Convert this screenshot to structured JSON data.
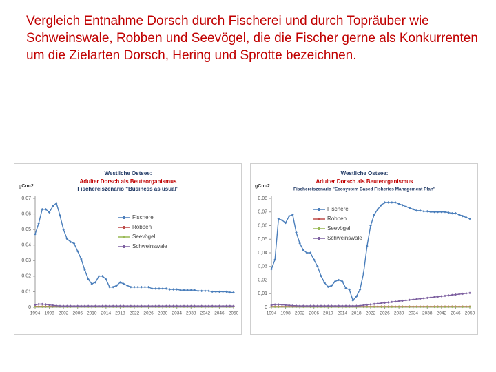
{
  "title": "Vergleich Entnahme Dorsch durch Fischerei und durch Topräuber wie Schweinswale, Robben und Seevögel, die die Fischer gerne als Konkurrenten um die Zielarten Dorsch, Hering und Sprotte bezeichnen.",
  "chart_data": [
    {
      "type": "line",
      "title": "Westliche Ostsee:",
      "subtitle": "Adulter Dorsch als Beuteorganismus",
      "scenario": "Fischereiszenario \"Business as usual\"",
      "ylabel": "gCm-2",
      "x": [
        1994,
        1995,
        1996,
        1997,
        1998,
        1999,
        2000,
        2001,
        2002,
        2003,
        2004,
        2005,
        2006,
        2007,
        2008,
        2009,
        2010,
        2011,
        2012,
        2013,
        2014,
        2015,
        2016,
        2017,
        2018,
        2019,
        2020,
        2021,
        2022,
        2023,
        2024,
        2025,
        2026,
        2027,
        2028,
        2029,
        2030,
        2031,
        2032,
        2033,
        2034,
        2035,
        2036,
        2037,
        2038,
        2039,
        2040,
        2041,
        2042,
        2043,
        2044,
        2045,
        2046,
        2047,
        2048,
        2049,
        2050
      ],
      "xlim": [
        1994,
        2050
      ],
      "xticks": [
        1994,
        1998,
        2002,
        2006,
        2010,
        2014,
        2018,
        2022,
        2026,
        2030,
        2034,
        2038,
        2042,
        2046,
        2050
      ],
      "ylim": [
        0,
        0.07
      ],
      "yticks": [
        0,
        {
          "value": 0.01,
          "label": "0,01"
        },
        {
          "value": 0.02,
          "label": "0,02"
        },
        {
          "value": 0.03,
          "label": "0,03"
        },
        {
          "value": 0.04,
          "label": "0,04"
        },
        {
          "value": 0.05,
          "label": "0,05"
        },
        {
          "value": 0.06,
          "label": "0,06"
        },
        {
          "value": 0.07,
          "label": "0,07"
        }
      ],
      "grid": false,
      "legend": "center",
      "series": [
        {
          "name": "Fischerei",
          "color": "#4a7ebb",
          "values": [
            0.047,
            0.054,
            0.063,
            0.063,
            0.061,
            0.065,
            0.067,
            0.059,
            0.05,
            0.044,
            0.042,
            0.041,
            0.036,
            0.031,
            0.024,
            0.018,
            0.015,
            0.016,
            0.02,
            0.02,
            0.018,
            0.013,
            0.013,
            0.014,
            0.016,
            0.015,
            0.014,
            0.013,
            0.013,
            0.013,
            0.013,
            0.013,
            0.013,
            0.012,
            0.012,
            0.012,
            0.012,
            0.012,
            0.0115,
            0.0115,
            0.0115,
            0.011,
            0.011,
            0.011,
            0.011,
            0.011,
            0.0105,
            0.0105,
            0.0105,
            0.0105,
            0.01,
            0.01,
            0.01,
            0.01,
            0.01,
            0.0095,
            0.0095
          ]
        },
        {
          "name": "Robben",
          "color": "#be4b48",
          "values": [
            0.0005,
            0.0005,
            0.0005,
            0.0005,
            0.0005,
            0.0005,
            0.0005,
            0.0005,
            0.0005,
            0.0005,
            0.0005,
            0.0005,
            0.0005,
            0.0005,
            0.0005,
            0.0005,
            0.0005,
            0.0005,
            0.0005,
            0.0005,
            0.0005,
            0.0005,
            0.0005,
            0.0005,
            0.0005,
            0.0005,
            0.0005,
            0.0005,
            0.0005,
            0.0005,
            0.0005,
            0.0005,
            0.0005,
            0.0005,
            0.0005,
            0.0005,
            0.0005,
            0.0005,
            0.0005,
            0.0005,
            0.0005,
            0.0005,
            0.0005,
            0.0005,
            0.0005,
            0.0005,
            0.0005,
            0.0005,
            0.0005,
            0.0005,
            0.0005,
            0.0005,
            0.0005,
            0.0005,
            0.0005,
            0.0005,
            0.0005
          ]
        },
        {
          "name": "Seevögel",
          "color": "#98b954",
          "values": [
            0.0003,
            0.0003,
            0.0003,
            0.0003,
            0.0003,
            0.0003,
            0.0003,
            0.0003,
            0.0003,
            0.0003,
            0.0003,
            0.0003,
            0.0003,
            0.0003,
            0.0003,
            0.0003,
            0.0003,
            0.0003,
            0.0003,
            0.0003,
            0.0003,
            0.0003,
            0.0003,
            0.0003,
            0.0003,
            0.0003,
            0.0003,
            0.0003,
            0.0003,
            0.0003,
            0.0003,
            0.0003,
            0.0003,
            0.0003,
            0.0003,
            0.0003,
            0.0003,
            0.0003,
            0.0003,
            0.0003,
            0.0003,
            0.0003,
            0.0003,
            0.0003,
            0.0003,
            0.0003,
            0.0003,
            0.0003,
            0.0003,
            0.0003,
            0.0003,
            0.0003,
            0.0003,
            0.0003,
            0.0003,
            0.0003,
            0.0003
          ]
        },
        {
          "name": "Schweinswale",
          "color": "#7d60a0",
          "values": [
            0.0015,
            0.002,
            0.002,
            0.0018,
            0.0015,
            0.0012,
            0.001,
            0.0008,
            0.0008,
            0.0008,
            0.0008,
            0.0008,
            0.0008,
            0.0008,
            0.0008,
            0.0008,
            0.0008,
            0.0008,
            0.0008,
            0.0008,
            0.0008,
            0.0008,
            0.0008,
            0.0008,
            0.0008,
            0.0008,
            0.0008,
            0.0008,
            0.0008,
            0.0008,
            0.0008,
            0.0008,
            0.0008,
            0.0008,
            0.0008,
            0.0008,
            0.0008,
            0.0008,
            0.0008,
            0.0008,
            0.0008,
            0.0008,
            0.0008,
            0.0008,
            0.0008,
            0.0008,
            0.0008,
            0.0008,
            0.0008,
            0.0008,
            0.0008,
            0.0008,
            0.0008,
            0.0008,
            0.0008,
            0.0008,
            0.0008
          ]
        }
      ]
    },
    {
      "type": "line",
      "title": "Westliche Ostsee:",
      "subtitle": "Adulter Dorsch als Beuteorganismus",
      "scenario": "Fischereiszenario \"Ecosystem Based Fisheries Management Plan\"",
      "ylabel": "gCm-2",
      "x": [
        1994,
        1995,
        1996,
        1997,
        1998,
        1999,
        2000,
        2001,
        2002,
        2003,
        2004,
        2005,
        2006,
        2007,
        2008,
        2009,
        2010,
        2011,
        2012,
        2013,
        2014,
        2015,
        2016,
        2017,
        2018,
        2019,
        2020,
        2021,
        2022,
        2023,
        2024,
        2025,
        2026,
        2027,
        2028,
        2029,
        2030,
        2031,
        2032,
        2033,
        2034,
        2035,
        2036,
        2037,
        2038,
        2039,
        2040,
        2041,
        2042,
        2043,
        2044,
        2045,
        2046,
        2047,
        2048,
        2049,
        2050
      ],
      "xlim": [
        1994,
        2050
      ],
      "xticks": [
        1994,
        1998,
        2002,
        2006,
        2010,
        2014,
        2018,
        2022,
        2026,
        2030,
        2034,
        2038,
        2042,
        2046,
        2050
      ],
      "ylim": [
        0,
        0.08
      ],
      "yticks": [
        0,
        {
          "value": 0.01,
          "label": "0,01"
        },
        {
          "value": 0.02,
          "label": "0,02"
        },
        {
          "value": 0.03,
          "label": "0,03"
        },
        {
          "value": 0.04,
          "label": "0,04"
        },
        {
          "value": 0.05,
          "label": "0,05"
        },
        {
          "value": 0.06,
          "label": "0,06"
        },
        {
          "value": 0.07,
          "label": "0,07"
        },
        {
          "value": 0.08,
          "label": "0,08"
        }
      ],
      "grid": false,
      "legend": "upper left",
      "series": [
        {
          "name": "Fischerei",
          "color": "#4a7ebb",
          "values": [
            0.028,
            0.035,
            0.065,
            0.064,
            0.062,
            0.067,
            0.068,
            0.055,
            0.047,
            0.042,
            0.04,
            0.04,
            0.035,
            0.03,
            0.023,
            0.018,
            0.015,
            0.016,
            0.019,
            0.02,
            0.019,
            0.014,
            0.013,
            0.005,
            0.008,
            0.013,
            0.025,
            0.045,
            0.06,
            0.068,
            0.072,
            0.075,
            0.077,
            0.077,
            0.077,
            0.077,
            0.076,
            0.075,
            0.074,
            0.073,
            0.072,
            0.071,
            0.071,
            0.0705,
            0.0705,
            0.07,
            0.07,
            0.07,
            0.07,
            0.07,
            0.0695,
            0.069,
            0.069,
            0.068,
            0.067,
            0.066,
            0.065
          ]
        },
        {
          "name": "Robben",
          "color": "#be4b48",
          "values": [
            0.0005,
            0.0005,
            0.0005,
            0.0005,
            0.0005,
            0.0005,
            0.0005,
            0.0005,
            0.0005,
            0.0005,
            0.0005,
            0.0005,
            0.0005,
            0.0005,
            0.0005,
            0.0005,
            0.0005,
            0.0005,
            0.0005,
            0.0005,
            0.0005,
            0.0005,
            0.0005,
            0.0005,
            0.0005,
            0.0005,
            0.0005,
            0.0005,
            0.0005,
            0.0005,
            0.0005,
            0.0005,
            0.0005,
            0.0005,
            0.0005,
            0.0005,
            0.0005,
            0.0005,
            0.0005,
            0.0005,
            0.0005,
            0.0005,
            0.0005,
            0.0005,
            0.0005,
            0.0005,
            0.0005,
            0.0005,
            0.0005,
            0.0005,
            0.0005,
            0.0005,
            0.0005,
            0.0005,
            0.0005,
            0.0005,
            0.0005
          ]
        },
        {
          "name": "Seevögel",
          "color": "#98b954",
          "values": [
            0.0003,
            0.0003,
            0.0003,
            0.0003,
            0.0003,
            0.0003,
            0.0003,
            0.0003,
            0.0003,
            0.0003,
            0.0003,
            0.0003,
            0.0003,
            0.0003,
            0.0003,
            0.0003,
            0.0003,
            0.0003,
            0.0003,
            0.0003,
            0.0003,
            0.0003,
            0.0003,
            0.0003,
            0.0003,
            0.0003,
            0.0003,
            0.0003,
            0.0003,
            0.0003,
            0.0003,
            0.0003,
            0.0003,
            0.0003,
            0.0003,
            0.0003,
            0.0003,
            0.0003,
            0.0003,
            0.0003,
            0.0003,
            0.0003,
            0.0003,
            0.0003,
            0.0003,
            0.0003,
            0.0003,
            0.0003,
            0.0003,
            0.0003,
            0.0003,
            0.0003,
            0.0003,
            0.0003,
            0.0003,
            0.0003,
            0.0003
          ]
        },
        {
          "name": "Schweinswale",
          "color": "#7d60a0",
          "values": [
            0.0015,
            0.002,
            0.002,
            0.0018,
            0.0016,
            0.0014,
            0.0012,
            0.0011,
            0.001,
            0.001,
            0.001,
            0.001,
            0.001,
            0.001,
            0.001,
            0.001,
            0.001,
            0.001,
            0.001,
            0.001,
            0.001,
            0.001,
            0.001,
            0.001,
            0.001,
            0.0012,
            0.0015,
            0.0018,
            0.0021,
            0.0024,
            0.0027,
            0.003,
            0.0033,
            0.0036,
            0.0039,
            0.0042,
            0.0045,
            0.0048,
            0.0051,
            0.0054,
            0.0057,
            0.006,
            0.0063,
            0.0066,
            0.0069,
            0.0072,
            0.0075,
            0.0078,
            0.0081,
            0.0084,
            0.0087,
            0.009,
            0.0093,
            0.0096,
            0.0099,
            0.0102,
            0.0105
          ]
        }
      ]
    }
  ]
}
